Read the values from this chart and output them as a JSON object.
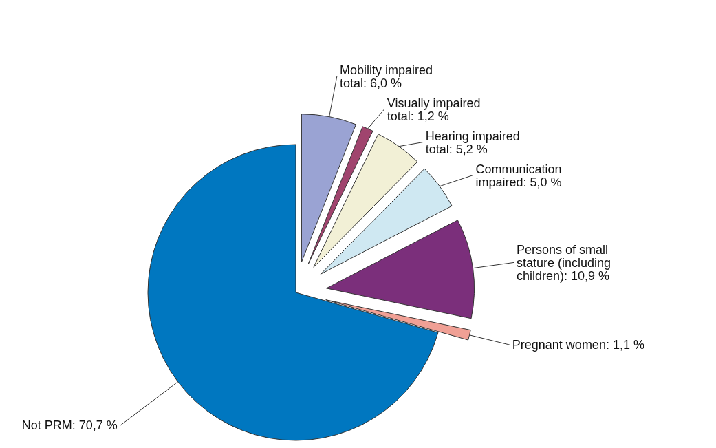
{
  "chart_data": {
    "type": "pie",
    "categories": [
      "Mobility impaired total",
      "Visually impaired total",
      "Hearing impaired total",
      "Communication impaired",
      "Persons of small stature (including children)",
      "Pregnant women",
      "Not PRM"
    ],
    "values": [
      6.0,
      1.2,
      5.2,
      5.0,
      10.9,
      1.1,
      70.7
    ],
    "value_labels": [
      "6,0 %",
      "1,2 %",
      "5,2 %",
      "5,0 %",
      "10,9 %",
      "1,1 %",
      "70,7 %"
    ],
    "colors": [
      "#9aa3d3",
      "#a0446e",
      "#f2f0d6",
      "#cfe8f2",
      "#7b2f7b",
      "#f0a095",
      "#0077c0"
    ]
  }
}
